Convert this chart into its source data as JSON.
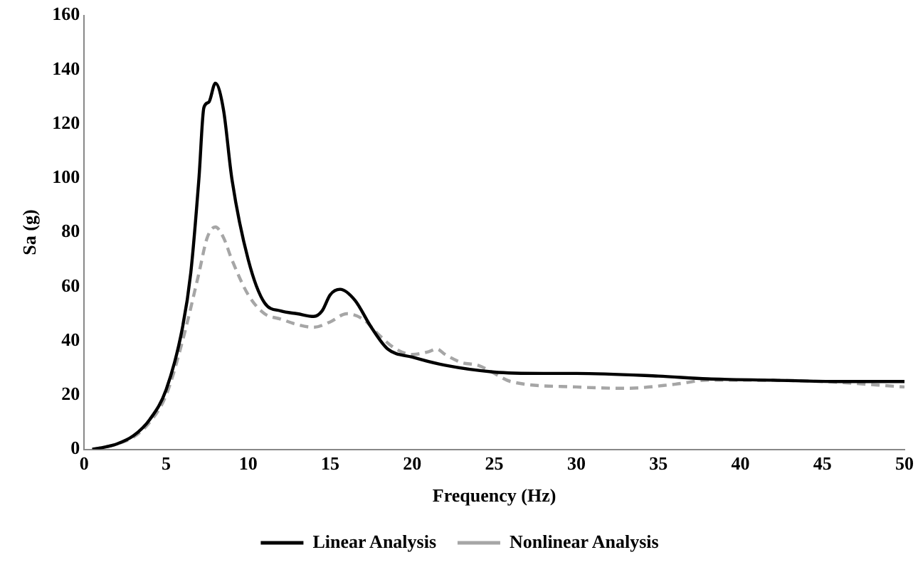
{
  "chart_data": {
    "type": "line",
    "xlabel": "Frequency (Hz)",
    "ylabel": "Sa (g)",
    "xlim": [
      0,
      50
    ],
    "xticks": [
      0,
      5,
      10,
      15,
      20,
      25,
      30,
      35,
      40,
      45,
      50
    ],
    "ylim": [
      0,
      160
    ],
    "yticks": [
      0,
      20,
      40,
      60,
      80,
      100,
      120,
      140,
      160
    ],
    "grid": false,
    "legend": "bottom",
    "marker": "none",
    "series": [
      {
        "name": "Linear Analysis",
        "color": "#000000",
        "line_style": "solid",
        "x": [
          0.5,
          1,
          2,
          3,
          4,
          5,
          6,
          6.5,
          7,
          7.3,
          7.6,
          8,
          8.5,
          9,
          10,
          11,
          12,
          13,
          14,
          14.5,
          15,
          15.6,
          16.5,
          17.5,
          18.5,
          20,
          22,
          25,
          28,
          30,
          35,
          38,
          42,
          46,
          50
        ],
        "values": [
          0,
          0.5,
          2,
          5,
          11,
          22,
          45,
          65,
          100,
          126,
          128,
          135,
          125,
          100,
          70,
          54,
          51,
          50,
          49,
          51,
          57,
          59,
          55,
          45,
          37,
          34,
          31,
          28.5,
          28,
          28,
          27,
          26,
          25.5,
          25,
          25
        ]
      },
      {
        "name": "Nonlinear Analysis",
        "color": "#a6a6a6",
        "line_style": "dashed",
        "x": [
          0.5,
          1,
          2,
          3,
          4,
          5,
          6,
          7,
          7.5,
          8,
          8.5,
          9,
          10,
          11,
          12,
          13,
          14,
          15,
          16,
          17,
          18,
          19,
          20,
          21,
          21.5,
          22,
          23,
          24,
          25,
          26,
          30,
          33,
          36,
          38,
          40,
          45,
          50
        ],
        "values": [
          0,
          0.5,
          2,
          4.5,
          10,
          20,
          40,
          65,
          78,
          82,
          78,
          70,
          57,
          50,
          48,
          46,
          45,
          47,
          50,
          48,
          42,
          37,
          35,
          36,
          37,
          35,
          32,
          31,
          28,
          25,
          23,
          22.5,
          24,
          25.5,
          25.5,
          25,
          23
        ]
      }
    ]
  }
}
